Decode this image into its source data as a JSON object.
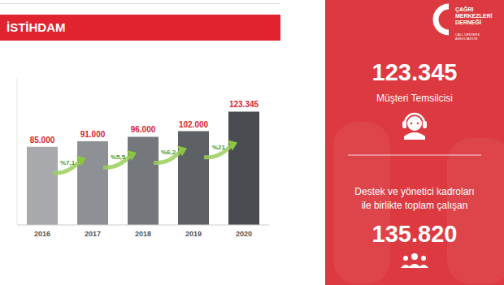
{
  "chart_data": {
    "type": "bar",
    "title": "İSTİHDAM",
    "categories": [
      "2016",
      "2017",
      "2018",
      "2019",
      "2020"
    ],
    "values": [
      85000,
      91000,
      96000,
      102000,
      123345
    ],
    "value_labels": [
      "85.000",
      "91.000",
      "96.000",
      "102.000",
      "123.345"
    ],
    "colors": [
      "#a7a9ac",
      "#8d9094",
      "#74777c",
      "#5d6166",
      "#494d52"
    ],
    "ylim": [
      0,
      160000
    ],
    "yticks": [],
    "tick_labels": "x",
    "data_labels": true,
    "grid": false,
    "annotations": [
      "%7,1",
      "%5,5",
      "%6,2",
      "%21"
    ]
  },
  "side_panel": {
    "logo_lines": [
      "ÇAĞRI",
      "MERKEZLERİ",
      "DERNEĞİ"
    ],
    "logo_subtitle": [
      "CALL CENTERS",
      "ASSOCIATION"
    ],
    "headline_value": "123.345",
    "headline_label": "Müşteri Temsilcisi",
    "total_label": [
      "Destek ve yönetici kadroları",
      "ile birlikte toplam çalışan"
    ],
    "total_value": "135.820"
  }
}
